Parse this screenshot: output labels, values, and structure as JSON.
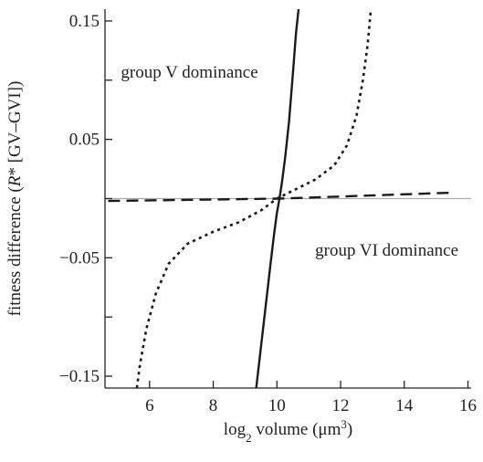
{
  "chart_data": {
    "type": "line",
    "xlabel": {
      "prefix": "log",
      "subscript": "2",
      "rest": " volume (μm",
      "superscript": "3",
      "suffix": ")"
    },
    "ylabel": {
      "pre": "fitness difference (",
      "italic": "R",
      "post": "* [GV–GVI])"
    },
    "xlim": [
      4.6,
      16.1
    ],
    "ylim": [
      -0.16,
      0.16
    ],
    "x_ticks": [
      {
        "value": 6,
        "label": "6"
      },
      {
        "value": 8,
        "label": "8"
      },
      {
        "value": 10,
        "label": "10"
      },
      {
        "value": 12,
        "label": "12"
      },
      {
        "value": 14,
        "label": "14"
      },
      {
        "value": 16,
        "label": "16"
      }
    ],
    "y_ticks": [
      {
        "value": 0.15,
        "label": "0.15"
      },
      {
        "value": 0.1,
        "label": ""
      },
      {
        "value": 0.05,
        "label": "0.05"
      },
      {
        "value": 0.0,
        "label": ""
      },
      {
        "value": -0.05,
        "label": "−0.05"
      },
      {
        "value": -0.1,
        "label": ""
      },
      {
        "value": -0.15,
        "label": "−0.15"
      }
    ],
    "reference_line": {
      "y": 0,
      "color": "#aaaaaa"
    },
    "annotations": [
      {
        "text": "group V dominance",
        "x": 5.1,
        "y": 0.102
      },
      {
        "text": "group VI dominance",
        "x": 11.2,
        "y": -0.048
      }
    ],
    "series": [
      {
        "style": "solid",
        "color": "#1a1a1a",
        "points": [
          [
            9.35,
            -0.16
          ],
          [
            9.5,
            -0.125
          ],
          [
            9.65,
            -0.09
          ],
          [
            9.8,
            -0.055
          ],
          [
            9.92,
            -0.028
          ],
          [
            10.0,
            -0.012
          ],
          [
            10.08,
            0.0
          ],
          [
            10.16,
            0.014
          ],
          [
            10.26,
            0.035
          ],
          [
            10.38,
            0.065
          ],
          [
            10.5,
            0.105
          ],
          [
            10.6,
            0.14
          ],
          [
            10.68,
            0.16
          ]
        ]
      },
      {
        "style": "dotted",
        "color": "#1a1a1a",
        "points": [
          [
            5.6,
            -0.16
          ],
          [
            5.7,
            -0.14
          ],
          [
            5.9,
            -0.11
          ],
          [
            6.2,
            -0.08
          ],
          [
            6.6,
            -0.055
          ],
          [
            7.2,
            -0.038
          ],
          [
            8.0,
            -0.028
          ],
          [
            8.8,
            -0.02
          ],
          [
            9.5,
            -0.01
          ],
          [
            10.0,
            0.0
          ],
          [
            10.6,
            0.008
          ],
          [
            11.2,
            0.016
          ],
          [
            11.8,
            0.028
          ],
          [
            12.2,
            0.045
          ],
          [
            12.5,
            0.07
          ],
          [
            12.7,
            0.1
          ],
          [
            12.85,
            0.13
          ],
          [
            12.95,
            0.16
          ]
        ]
      },
      {
        "style": "dashed",
        "color": "#1a1a1a",
        "points": [
          [
            4.7,
            -0.002
          ],
          [
            10.1,
            0.0
          ],
          [
            15.5,
            0.005
          ]
        ]
      }
    ]
  }
}
